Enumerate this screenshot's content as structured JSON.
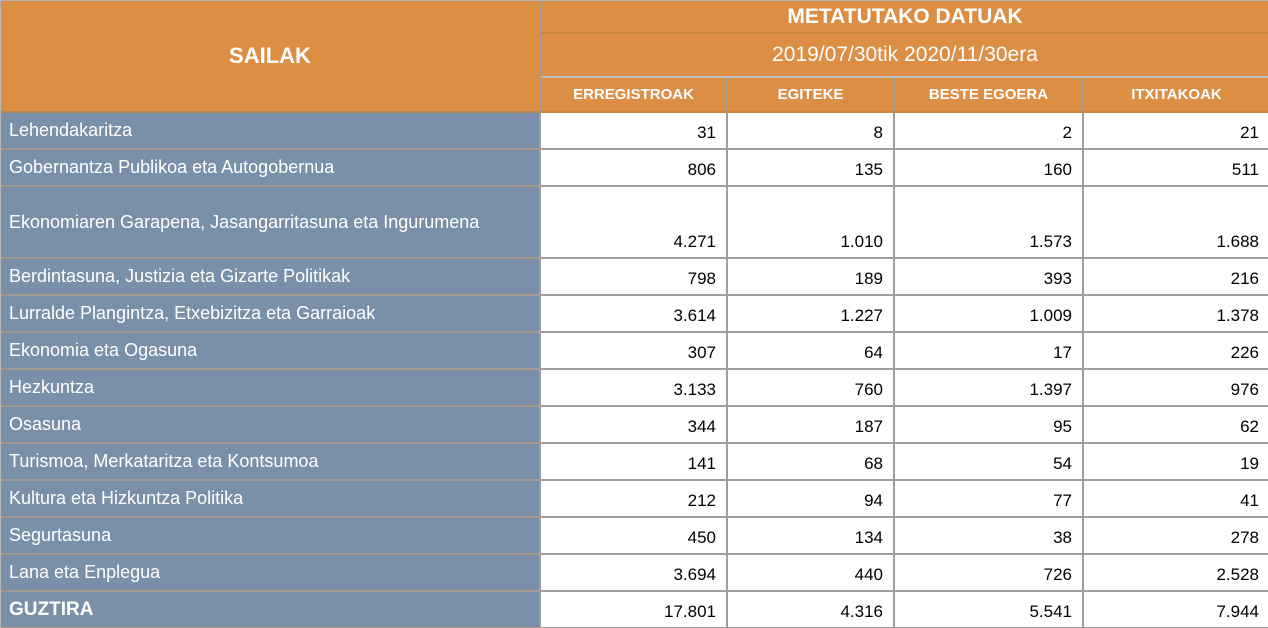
{
  "table": {
    "corner_header": "SAILAK",
    "group_header": "METATUTAKO DATUAK",
    "date_range": "2019/07/30tik 2020/11/30era",
    "columns": [
      "ERREGISTROAK",
      "EGITEKE",
      "BESTE EGOERA",
      "ITXITAKOAK"
    ],
    "rows": [
      {
        "label": "Lehendakaritza",
        "values": [
          "31",
          "8",
          "2",
          "21"
        ]
      },
      {
        "label": "Gobernantza Publikoa eta Autogobernua",
        "values": [
          "806",
          "135",
          "160",
          "511"
        ]
      },
      {
        "label": "Ekonomiaren Garapena, Jasangarritasuna eta Ingurumena",
        "values": [
          "4.271",
          "1.010",
          "1.573",
          "1.688"
        ]
      },
      {
        "label": "Berdintasuna, Justizia eta Gizarte Politikak",
        "values": [
          "798",
          "189",
          "393",
          "216"
        ]
      },
      {
        "label": "Lurralde Plangintza, Etxebizitza eta Garraioak",
        "values": [
          "3.614",
          "1.227",
          "1.009",
          "1.378"
        ]
      },
      {
        "label": "Ekonomia eta Ogasuna",
        "values": [
          "307",
          "64",
          "17",
          "226"
        ]
      },
      {
        "label": "Hezkuntza",
        "values": [
          "3.133",
          "760",
          "1.397",
          "976"
        ]
      },
      {
        "label": "Osasuna",
        "values": [
          "344",
          "187",
          "95",
          "62"
        ]
      },
      {
        "label": "Turismoa, Merkataritza eta Kontsumoa",
        "values": [
          "141",
          "68",
          "54",
          "19"
        ]
      },
      {
        "label": "Kultura eta Hizkuntza Politika",
        "values": [
          "212",
          "94",
          "77",
          "41"
        ]
      },
      {
        "label": "Segurtasuna",
        "values": [
          "450",
          "134",
          "38",
          "278"
        ]
      },
      {
        "label": "Lana eta Enplegua",
        "values": [
          "3.694",
          "440",
          "726",
          "2.528"
        ]
      }
    ],
    "total_row": {
      "label": "GUZTIRA",
      "values": [
        "17.801",
        "4.316",
        "5.541",
        "7.944"
      ]
    }
  },
  "colors": {
    "header_orange": "#DC8E45",
    "row_blue": "#7A90A8",
    "cell_white": "#FFFFFF",
    "header_text": "#FFFFFF",
    "value_text": "#000000",
    "grid_gray": "#9E9E9E"
  },
  "chart_data": {
    "type": "table",
    "title": "METATUTAKO DATUAK",
    "subtitle": "2019/07/30tik 2020/11/30era",
    "row_header_label": "SAILAK",
    "columns": [
      "ERREGISTROAK",
      "EGITEKE",
      "BESTE EGOERA",
      "ITXITAKOAK"
    ],
    "rows": [
      {
        "label": "Lehendakaritza",
        "values": [
          31,
          8,
          2,
          21
        ]
      },
      {
        "label": "Gobernantza Publikoa eta Autogobernua",
        "values": [
          806,
          135,
          160,
          511
        ]
      },
      {
        "label": "Ekonomiaren Garapena, Jasangarritasuna eta Ingurumena",
        "values": [
          4271,
          1010,
          1573,
          1688
        ]
      },
      {
        "label": "Berdintasuna, Justizia eta Gizarte Politikak",
        "values": [
          798,
          189,
          393,
          216
        ]
      },
      {
        "label": "Lurralde Plangintza, Etxebizitza eta Garraioak",
        "values": [
          3614,
          1227,
          1009,
          1378
        ]
      },
      {
        "label": "Ekonomia eta Ogasuna",
        "values": [
          307,
          64,
          17,
          226
        ]
      },
      {
        "label": "Hezkuntza",
        "values": [
          3133,
          760,
          1397,
          976
        ]
      },
      {
        "label": "Osasuna",
        "values": [
          344,
          187,
          95,
          62
        ]
      },
      {
        "label": "Turismoa, Merkataritza eta Kontsumoa",
        "values": [
          141,
          68,
          54,
          19
        ]
      },
      {
        "label": "Kultura eta Hizkuntza Politika",
        "values": [
          212,
          94,
          77,
          41
        ]
      },
      {
        "label": "Segurtasuna",
        "values": [
          450,
          134,
          38,
          278
        ]
      },
      {
        "label": "Lana eta Enplegua",
        "values": [
          3694,
          440,
          726,
          2528
        ]
      }
    ],
    "totals": {
      "label": "GUZTIRA",
      "values": [
        17801,
        4316,
        5541,
        7944
      ]
    }
  }
}
